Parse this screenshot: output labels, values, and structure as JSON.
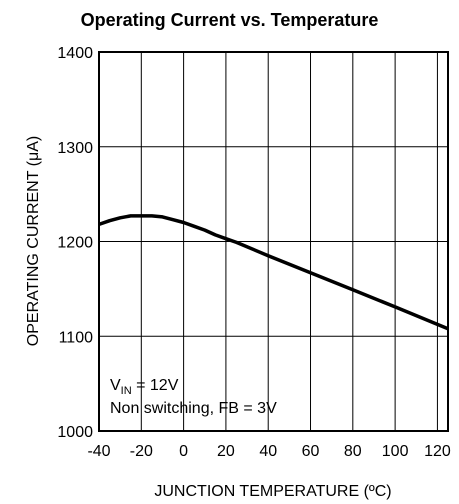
{
  "chart_data": {
    "type": "line",
    "title": "Operating Current vs. Temperature",
    "xlabel": "JUNCTION TEMPERATURE (ºC)",
    "ylabel": "OPERATING CURRENT (μA)",
    "xlim": [
      -40,
      125
    ],
    "ylim": [
      1000,
      1400
    ],
    "x_ticks": [
      "-40",
      "-20",
      "0",
      "20",
      "40",
      "60",
      "80",
      "100",
      "120"
    ],
    "y_ticks": [
      "1000",
      "1100",
      "1200",
      "1300",
      "1400"
    ],
    "grid": true,
    "annotation": {
      "vin_prefix": "V",
      "vin_sub": "IN",
      "vin_suffix": " = 12V",
      "line2": "Non switching, FB = 3V"
    },
    "series": [
      {
        "x": [
          -40,
          -35,
          -30,
          -25,
          -20,
          -15,
          -10,
          -5,
          0,
          5,
          10,
          15,
          20,
          25,
          40,
          60,
          80,
          100,
          125
        ],
        "values": [
          1218,
          1222,
          1225,
          1227,
          1227,
          1227,
          1226,
          1223,
          1220,
          1216,
          1212,
          1207,
          1203,
          1199,
          1185,
          1167,
          1149,
          1131,
          1108
        ]
      }
    ]
  }
}
